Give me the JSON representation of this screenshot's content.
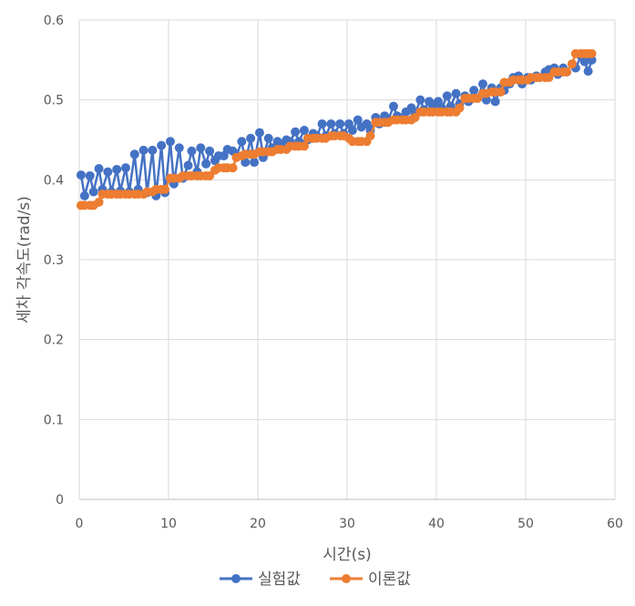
{
  "chart_data": {
    "type": "line",
    "title": "",
    "xlabel": "시간(s)",
    "ylabel": "세차 각속도(rad/s)",
    "xlim": [
      0,
      60
    ],
    "ylim": [
      0,
      0.6
    ],
    "x_ticks": [
      "0",
      "10",
      "20",
      "30",
      "40",
      "50",
      "60"
    ],
    "y_ticks": [
      "0",
      "0.1",
      "0.2",
      "0.3",
      "0.4",
      "0.5",
      "0.6"
    ],
    "grid": true,
    "legend_position": "bottom",
    "series": [
      {
        "name": "실험값",
        "color": "#4472C4",
        "points": [
          [
            0.2,
            0.406
          ],
          [
            0.6,
            0.38
          ],
          [
            1.2,
            0.405
          ],
          [
            1.6,
            0.385
          ],
          [
            2.2,
            0.414
          ],
          [
            2.6,
            0.388
          ],
          [
            3.2,
            0.41
          ],
          [
            3.6,
            0.385
          ],
          [
            4.2,
            0.413
          ],
          [
            4.6,
            0.386
          ],
          [
            5.2,
            0.415
          ],
          [
            5.6,
            0.385
          ],
          [
            6.2,
            0.432
          ],
          [
            6.6,
            0.388
          ],
          [
            7.2,
            0.437
          ],
          [
            7.6,
            0.384
          ],
          [
            8.2,
            0.437
          ],
          [
            8.6,
            0.38
          ],
          [
            9.2,
            0.443
          ],
          [
            9.6,
            0.384
          ],
          [
            10.2,
            0.448
          ],
          [
            10.6,
            0.395
          ],
          [
            11.2,
            0.44
          ],
          [
            11.6,
            0.402
          ],
          [
            12.2,
            0.418
          ],
          [
            12.6,
            0.436
          ],
          [
            13.2,
            0.41
          ],
          [
            13.6,
            0.44
          ],
          [
            14.2,
            0.42
          ],
          [
            14.6,
            0.436
          ],
          [
            15.2,
            0.424
          ],
          [
            15.6,
            0.43
          ],
          [
            16.2,
            0.43
          ],
          [
            16.6,
            0.438
          ],
          [
            17.2,
            0.436
          ],
          [
            17.6,
            0.43
          ],
          [
            18.2,
            0.448
          ],
          [
            18.6,
            0.422
          ],
          [
            19.2,
            0.452
          ],
          [
            19.6,
            0.422
          ],
          [
            20.2,
            0.459
          ],
          [
            20.6,
            0.428
          ],
          [
            21.2,
            0.452
          ],
          [
            21.6,
            0.44
          ],
          [
            22.2,
            0.448
          ],
          [
            22.6,
            0.445
          ],
          [
            23.2,
            0.45
          ],
          [
            23.6,
            0.448
          ],
          [
            24.2,
            0.46
          ],
          [
            24.6,
            0.448
          ],
          [
            25.2,
            0.462
          ],
          [
            25.6,
            0.45
          ],
          [
            26.2,
            0.458
          ],
          [
            26.6,
            0.455
          ],
          [
            27.2,
            0.47
          ],
          [
            27.6,
            0.455
          ],
          [
            28.2,
            0.47
          ],
          [
            28.6,
            0.458
          ],
          [
            29.2,
            0.47
          ],
          [
            29.6,
            0.458
          ],
          [
            30.2,
            0.47
          ],
          [
            30.6,
            0.462
          ],
          [
            31.2,
            0.475
          ],
          [
            31.6,
            0.466
          ],
          [
            32.2,
            0.47
          ],
          [
            32.6,
            0.462
          ],
          [
            33.2,
            0.478
          ],
          [
            33.6,
            0.47
          ],
          [
            34.2,
            0.48
          ],
          [
            34.6,
            0.475
          ],
          [
            35.2,
            0.492
          ],
          [
            35.6,
            0.48
          ],
          [
            36.2,
            0.478
          ],
          [
            36.6,
            0.485
          ],
          [
            37.2,
            0.49
          ],
          [
            37.6,
            0.482
          ],
          [
            38.2,
            0.5
          ],
          [
            38.6,
            0.488
          ],
          [
            39.2,
            0.498
          ],
          [
            39.6,
            0.492
          ],
          [
            40.2,
            0.498
          ],
          [
            40.6,
            0.49
          ],
          [
            41.2,
            0.505
          ],
          [
            41.6,
            0.492
          ],
          [
            42.2,
            0.508
          ],
          [
            42.6,
            0.495
          ],
          [
            43.2,
            0.505
          ],
          [
            43.6,
            0.498
          ],
          [
            44.2,
            0.512
          ],
          [
            44.6,
            0.502
          ],
          [
            45.2,
            0.52
          ],
          [
            45.6,
            0.5
          ],
          [
            46.2,
            0.515
          ],
          [
            46.6,
            0.498
          ],
          [
            47.2,
            0.515
          ],
          [
            47.6,
            0.512
          ],
          [
            48.2,
            0.52
          ],
          [
            48.6,
            0.528
          ],
          [
            49.2,
            0.53
          ],
          [
            49.6,
            0.52
          ],
          [
            50.2,
            0.528
          ],
          [
            50.6,
            0.525
          ],
          [
            51.2,
            0.53
          ],
          [
            51.6,
            0.528
          ],
          [
            52.2,
            0.535
          ],
          [
            52.6,
            0.538
          ],
          [
            53.2,
            0.54
          ],
          [
            53.6,
            0.532
          ],
          [
            54.2,
            0.54
          ],
          [
            54.6,
            0.535
          ],
          [
            55.2,
            0.545
          ],
          [
            55.6,
            0.54
          ],
          [
            56.2,
            0.555
          ],
          [
            56.6,
            0.548
          ],
          [
            57.0,
            0.536
          ],
          [
            57.4,
            0.55
          ]
        ]
      },
      {
        "name": "이론값",
        "color": "#ED7D31",
        "points": [
          [
            0.2,
            0.368
          ],
          [
            0.6,
            0.368
          ],
          [
            1.2,
            0.368
          ],
          [
            1.6,
            0.368
          ],
          [
            2.2,
            0.372
          ],
          [
            2.6,
            0.382
          ],
          [
            3.2,
            0.382
          ],
          [
            3.6,
            0.382
          ],
          [
            4.2,
            0.382
          ],
          [
            4.6,
            0.382
          ],
          [
            5.2,
            0.382
          ],
          [
            5.6,
            0.382
          ],
          [
            6.2,
            0.382
          ],
          [
            6.6,
            0.382
          ],
          [
            7.2,
            0.382
          ],
          [
            7.6,
            0.385
          ],
          [
            8.2,
            0.385
          ],
          [
            8.6,
            0.388
          ],
          [
            9.2,
            0.388
          ],
          [
            9.6,
            0.388
          ],
          [
            10.2,
            0.402
          ],
          [
            10.6,
            0.402
          ],
          [
            11.2,
            0.402
          ],
          [
            11.6,
            0.405
          ],
          [
            12.2,
            0.405
          ],
          [
            12.6,
            0.405
          ],
          [
            13.2,
            0.405
          ],
          [
            13.6,
            0.405
          ],
          [
            14.2,
            0.405
          ],
          [
            14.6,
            0.405
          ],
          [
            15.2,
            0.412
          ],
          [
            15.6,
            0.415
          ],
          [
            16.2,
            0.415
          ],
          [
            16.6,
            0.415
          ],
          [
            17.2,
            0.415
          ],
          [
            17.6,
            0.428
          ],
          [
            18.2,
            0.43
          ],
          [
            18.6,
            0.432
          ],
          [
            19.2,
            0.432
          ],
          [
            19.6,
            0.432
          ],
          [
            20.2,
            0.435
          ],
          [
            20.6,
            0.435
          ],
          [
            21.2,
            0.435
          ],
          [
            21.6,
            0.435
          ],
          [
            22.2,
            0.438
          ],
          [
            22.6,
            0.438
          ],
          [
            23.2,
            0.438
          ],
          [
            23.6,
            0.442
          ],
          [
            24.2,
            0.442
          ],
          [
            24.6,
            0.442
          ],
          [
            25.2,
            0.442
          ],
          [
            25.6,
            0.452
          ],
          [
            26.2,
            0.452
          ],
          [
            26.6,
            0.452
          ],
          [
            27.2,
            0.452
          ],
          [
            27.6,
            0.452
          ],
          [
            28.2,
            0.455
          ],
          [
            28.6,
            0.455
          ],
          [
            29.2,
            0.455
          ],
          [
            29.6,
            0.455
          ],
          [
            30.2,
            0.452
          ],
          [
            30.6,
            0.448
          ],
          [
            31.2,
            0.448
          ],
          [
            31.6,
            0.448
          ],
          [
            32.2,
            0.448
          ],
          [
            32.6,
            0.455
          ],
          [
            33.2,
            0.472
          ],
          [
            33.6,
            0.472
          ],
          [
            34.2,
            0.472
          ],
          [
            34.6,
            0.472
          ],
          [
            35.2,
            0.475
          ],
          [
            35.6,
            0.475
          ],
          [
            36.2,
            0.475
          ],
          [
            36.6,
            0.475
          ],
          [
            37.2,
            0.475
          ],
          [
            37.6,
            0.478
          ],
          [
            38.2,
            0.485
          ],
          [
            38.6,
            0.485
          ],
          [
            39.2,
            0.485
          ],
          [
            39.6,
            0.485
          ],
          [
            40.2,
            0.485
          ],
          [
            40.6,
            0.485
          ],
          [
            41.2,
            0.485
          ],
          [
            41.6,
            0.485
          ],
          [
            42.2,
            0.485
          ],
          [
            42.6,
            0.49
          ],
          [
            43.2,
            0.502
          ],
          [
            43.6,
            0.502
          ],
          [
            44.2,
            0.502
          ],
          [
            44.6,
            0.502
          ],
          [
            45.2,
            0.508
          ],
          [
            45.6,
            0.508
          ],
          [
            46.2,
            0.51
          ],
          [
            46.6,
            0.51
          ],
          [
            47.2,
            0.51
          ],
          [
            47.6,
            0.522
          ],
          [
            48.2,
            0.522
          ],
          [
            48.6,
            0.525
          ],
          [
            49.2,
            0.525
          ],
          [
            49.6,
            0.525
          ],
          [
            50.2,
            0.525
          ],
          [
            50.6,
            0.528
          ],
          [
            51.2,
            0.528
          ],
          [
            51.6,
            0.528
          ],
          [
            52.2,
            0.528
          ],
          [
            52.6,
            0.528
          ],
          [
            53.2,
            0.535
          ],
          [
            53.6,
            0.535
          ],
          [
            54.2,
            0.535
          ],
          [
            54.6,
            0.535
          ],
          [
            55.2,
            0.545
          ],
          [
            55.6,
            0.558
          ],
          [
            56.2,
            0.558
          ],
          [
            56.6,
            0.558
          ],
          [
            57.0,
            0.558
          ],
          [
            57.4,
            0.558
          ]
        ]
      }
    ]
  }
}
